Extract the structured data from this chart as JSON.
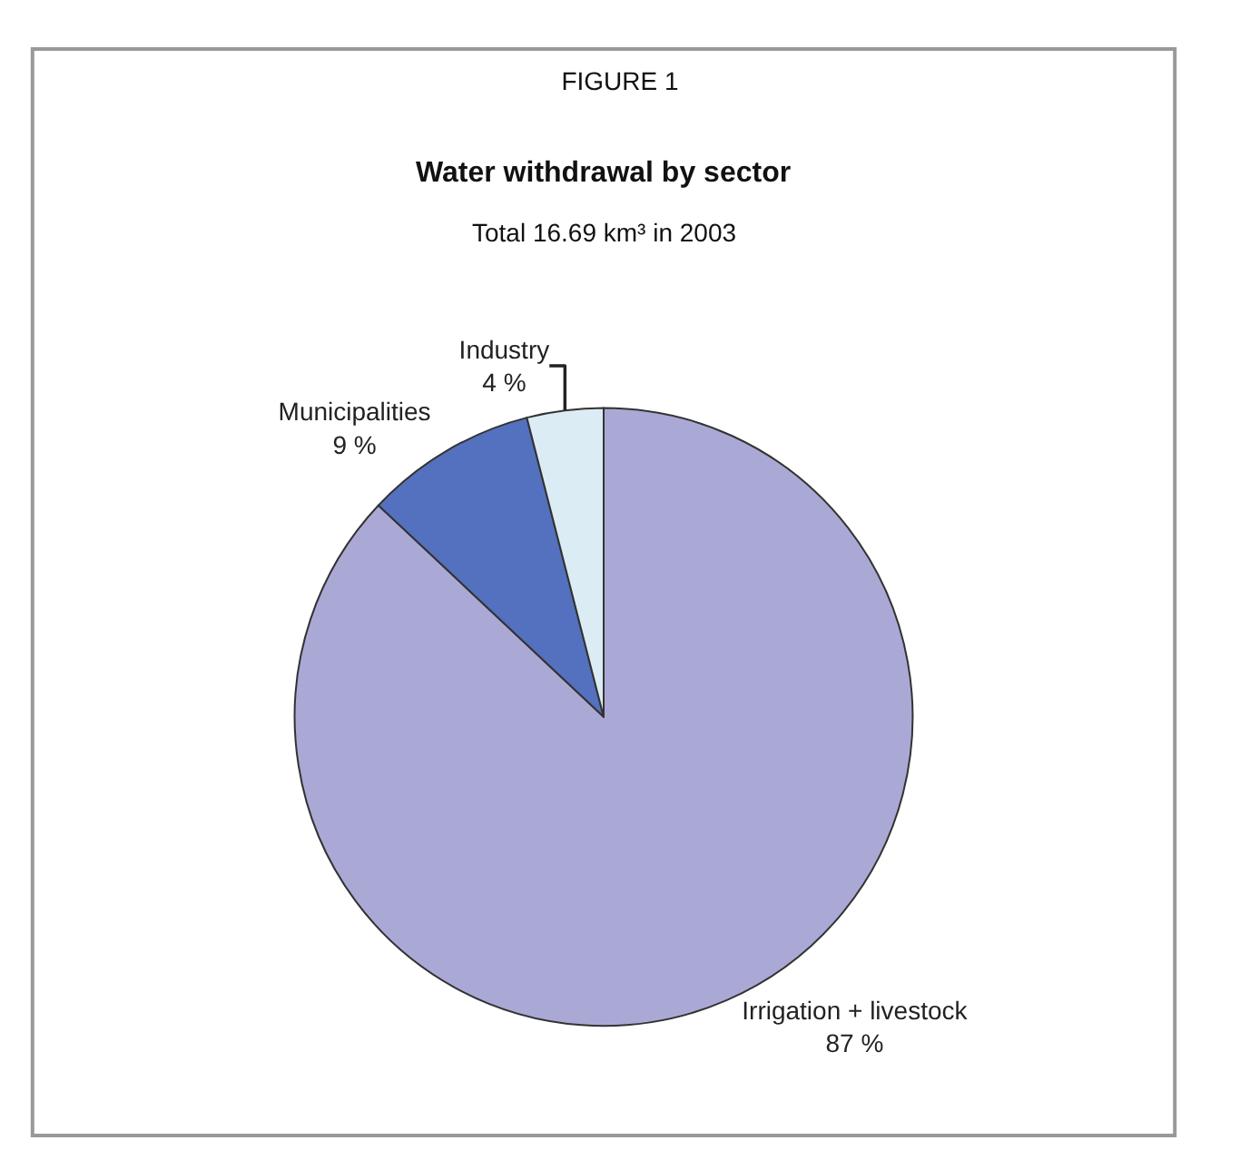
{
  "chart_data": {
    "type": "pie",
    "title": "FIGURE 1",
    "subtitle": "Water withdrawal by sector",
    "annotations": [
      "Total 16.69 km³ in 2003"
    ],
    "categories": [
      "Irrigation + livestock",
      "Municipalities",
      "Industry"
    ],
    "values": [
      87,
      9,
      4
    ],
    "value_labels": [
      "87 %",
      "9 %",
      "4 %"
    ],
    "colors": [
      "#aaa9d6",
      "#5471bf",
      "#dcecf4"
    ],
    "legend": false
  }
}
